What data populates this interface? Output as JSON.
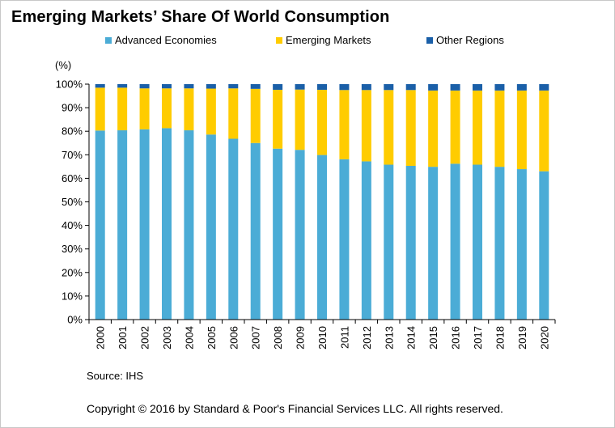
{
  "title": "Emerging Markets’ Share Of World Consumption",
  "source": "Source: IHS",
  "copyright": "Copyright © 2016 by Standard & Poor's Financial Services LLC. All rights reserved.",
  "colors": {
    "advanced": "#4bacd6",
    "emerging": "#ffcc00",
    "other": "#1a5fa8",
    "axis": "#000000"
  },
  "chart_data": {
    "type": "bar",
    "stacked": true,
    "title": "Emerging Markets’ Share Of World Consumption",
    "ylabel": "(%)",
    "xlabel": "",
    "ylim": [
      0,
      100
    ],
    "yticks": [
      "0%",
      "10%",
      "20%",
      "30%",
      "40%",
      "50%",
      "60%",
      "70%",
      "80%",
      "90%",
      "100%"
    ],
    "legend_position": "top",
    "grid": false,
    "categories": [
      "2000",
      "2001",
      "2002",
      "2003",
      "2004",
      "2005",
      "2006",
      "2007",
      "2008",
      "2009",
      "2010",
      "2011",
      "2012",
      "2013",
      "2014",
      "2015",
      "2016",
      "2017",
      "2018",
      "2019",
      "2020"
    ],
    "series": [
      {
        "name": "Advanced Economies",
        "values": [
          80.3,
          80.4,
          80.8,
          81.3,
          80.4,
          78.6,
          76.8,
          75.0,
          72.6,
          72.1,
          69.9,
          68.1,
          67.2,
          65.8,
          65.3,
          64.9,
          66.2,
          65.8,
          64.9,
          63.9,
          63.0
        ]
      },
      {
        "name": "Emerging Markets",
        "values": [
          18.2,
          18.1,
          17.4,
          16.9,
          17.8,
          19.5,
          21.4,
          23.0,
          25.0,
          25.6,
          27.7,
          29.4,
          30.3,
          31.7,
          32.2,
          32.4,
          31.1,
          31.5,
          32.4,
          33.4,
          34.3
        ]
      },
      {
        "name": "Other Regions",
        "values": [
          1.5,
          1.5,
          1.8,
          1.8,
          1.8,
          1.9,
          1.8,
          2.0,
          2.4,
          2.3,
          2.4,
          2.5,
          2.5,
          2.5,
          2.5,
          2.7,
          2.7,
          2.7,
          2.7,
          2.7,
          2.7
        ]
      }
    ]
  }
}
